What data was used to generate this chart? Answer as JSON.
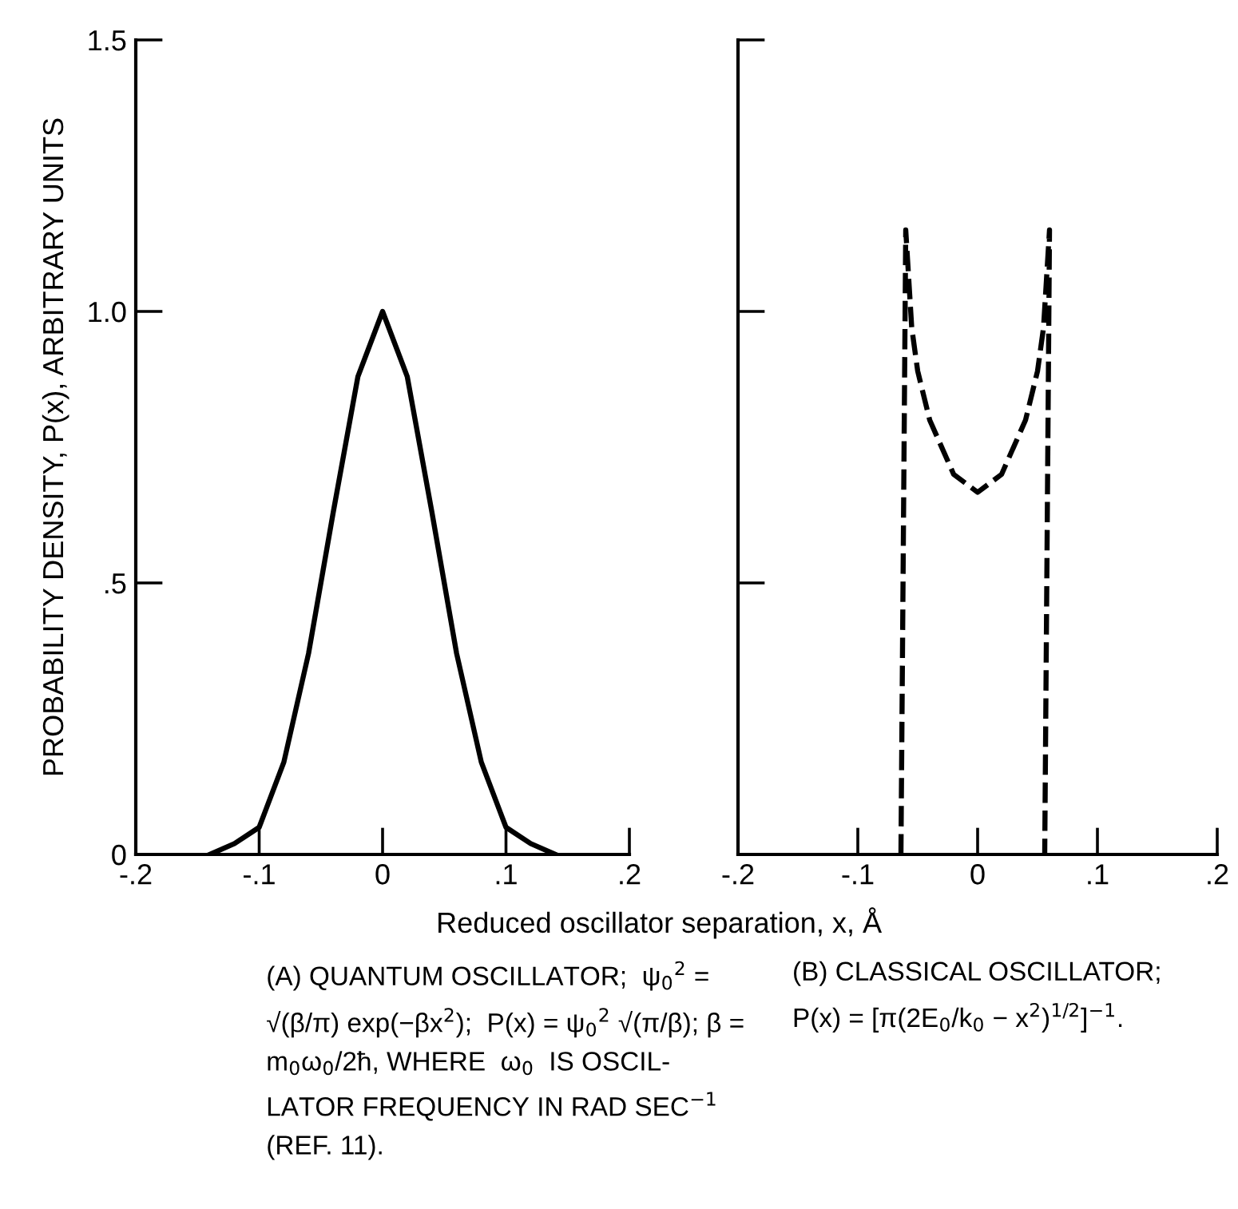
{
  "chart_data": [
    {
      "type": "line",
      "ylabel": "PROBABILITY DENSITY, P(x), ARBITRARY UNITS",
      "xlabel": "Reduced oscillator separation, x, Å",
      "x": [
        -0.14,
        -0.12,
        -0.1,
        -0.08,
        -0.06,
        -0.04,
        -0.02,
        0,
        0.02,
        0.04,
        0.06,
        0.08,
        0.1,
        0.12,
        0.14
      ],
      "series": [
        {
          "color": "#000000",
          "line_style": "solid",
          "values": [
            0,
            0.02,
            0.05,
            0.17,
            0.37,
            0.63,
            0.88,
            1.0,
            0.88,
            0.63,
            0.37,
            0.17,
            0.05,
            0.02,
            0
          ]
        }
      ],
      "xlim": [
        -0.2,
        0.2
      ],
      "ylim": [
        0,
        1.5
      ],
      "xticks": [
        {
          "value": -0.2,
          "label": "-.2"
        },
        {
          "value": -0.1,
          "label": "-.1"
        },
        0,
        {
          "value": 0.1,
          "label": ".1"
        },
        {
          "value": 0.2,
          "label": ".2"
        }
      ],
      "yticks": [
        0,
        {
          "value": 0.5,
          "label": ".5"
        },
        {
          "value": 1.0,
          "label": "1.0"
        },
        1.5
      ],
      "grid": false,
      "legend": false,
      "annotations": [
        "(A) QUANTUM OSCILLATOR;  ψ$_{0}$$^{2}$ =\n√(β/π) exp(−βx$^{2}$);  P(x) = ψ$_{0}$$^{2}$ √(π/β); β =\nm$_{0}$ω$_{0}$/2ħ, WHERE  ω$_{0}$  IS OSCIL-\nLATOR FREQUENCY IN RAD SEC$^{−1}$\n(REF. 11)."
      ]
    },
    {
      "type": "line",
      "x": [
        -0.064,
        -0.06,
        -0.055,
        -0.05,
        -0.04,
        -0.02,
        0,
        0.02,
        0.04,
        0.05,
        0.055,
        0.06,
        0.056
      ],
      "series": [
        {
          "color": "#000000",
          "line_style": "dashed",
          "values": [
            0,
            1.15,
            0.97,
            0.89,
            0.8,
            0.7,
            0.667,
            0.7,
            0.8,
            0.89,
            0.97,
            1.15,
            0
          ]
        }
      ],
      "xlim": [
        -0.2,
        0.2
      ],
      "ylim": [
        0,
        1.5
      ],
      "xticks": [
        {
          "value": -0.2,
          "label": "-.2"
        },
        {
          "value": -0.1,
          "label": "-.1"
        },
        0,
        {
          "value": 0.1,
          "label": ".1"
        },
        {
          "value": 0.2,
          "label": ".2"
        }
      ],
      "yticks": [
        0,
        0.5,
        1.0,
        1.5
      ],
      "tick_labels": "x",
      "grid": false,
      "legend": false,
      "annotations": [
        "(B) CLASSICAL OSCILLATOR;\nP(x) = [π(2E$_{0}$/k$_{0}$ − x$^{2}$)$^{1/2}$]$^{−1}$."
      ]
    }
  ]
}
